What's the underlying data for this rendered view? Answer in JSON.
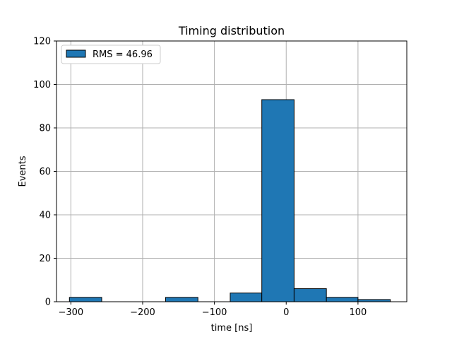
{
  "chart_data": {
    "type": "bar",
    "title": "Timing distribution",
    "xlabel": "time [ns]",
    "ylabel": "Events",
    "xlim": [
      -320,
      168
    ],
    "ylim": [
      0,
      120
    ],
    "xticks": [
      -300,
      -200,
      -100,
      0,
      100
    ],
    "yticks": [
      0,
      20,
      40,
      60,
      80,
      100,
      120
    ],
    "grid": true,
    "legend_position": "top-left",
    "series": [
      {
        "name": "RMS = 46.96",
        "color": "#1f77b4",
        "edge_color": "#000000",
        "bins": [
          {
            "x0": -302,
            "x1": -257,
            "count": 2
          },
          {
            "x0": -257,
            "x1": -212,
            "count": 0
          },
          {
            "x0": -212,
            "x1": -168,
            "count": 0
          },
          {
            "x0": -168,
            "x1": -123,
            "count": 2
          },
          {
            "x0": -123,
            "x1": -78,
            "count": 0
          },
          {
            "x0": -78,
            "x1": -34,
            "count": 4
          },
          {
            "x0": -34,
            "x1": 11,
            "count": 93
          },
          {
            "x0": 11,
            "x1": 56,
            "count": 6
          },
          {
            "x0": 56,
            "x1": 100,
            "count": 2
          },
          {
            "x0": 100,
            "x1": 145,
            "count": 1
          }
        ]
      }
    ]
  }
}
